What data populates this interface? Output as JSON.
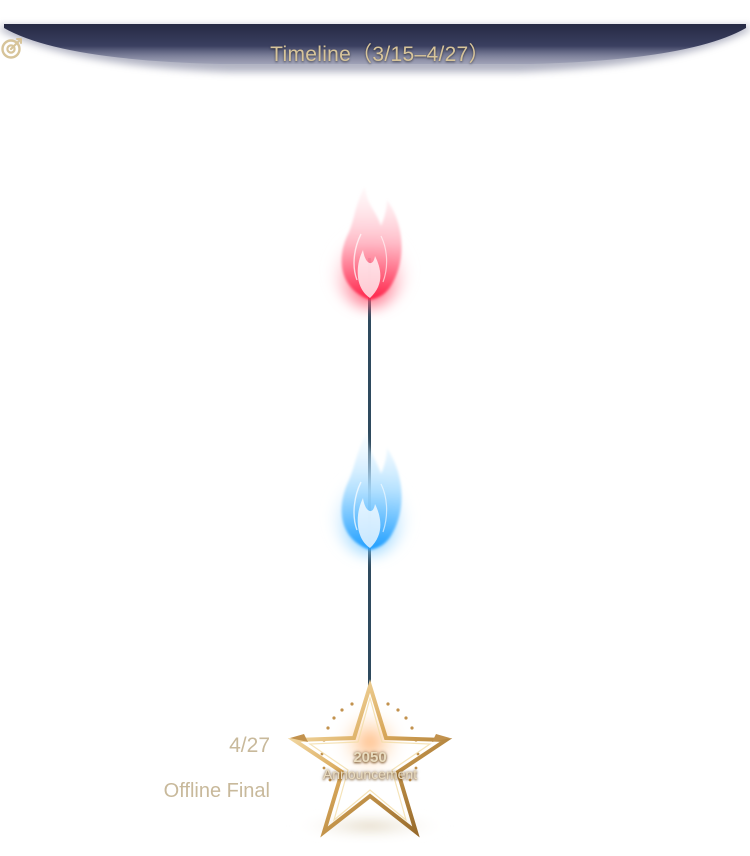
{
  "header": {
    "title": "Timeline（3/15–4/27）",
    "icon": "target-icon",
    "banner_color": "#2c3150",
    "title_color": "#d7c49a"
  },
  "timeline": {
    "line_color": "#2e4a5e",
    "nodes": [
      {
        "icon": "red-flame-icon",
        "color": "#ff3a5a"
      },
      {
        "icon": "blue-flame-icon",
        "color": "#38b6ff"
      }
    ],
    "final_event": {
      "icon": "gold-star-icon",
      "date": "4/27",
      "title": "Offline Final",
      "badge_year": "2050",
      "badge_label": "Announcement",
      "text_color": "#c8b99b"
    }
  }
}
